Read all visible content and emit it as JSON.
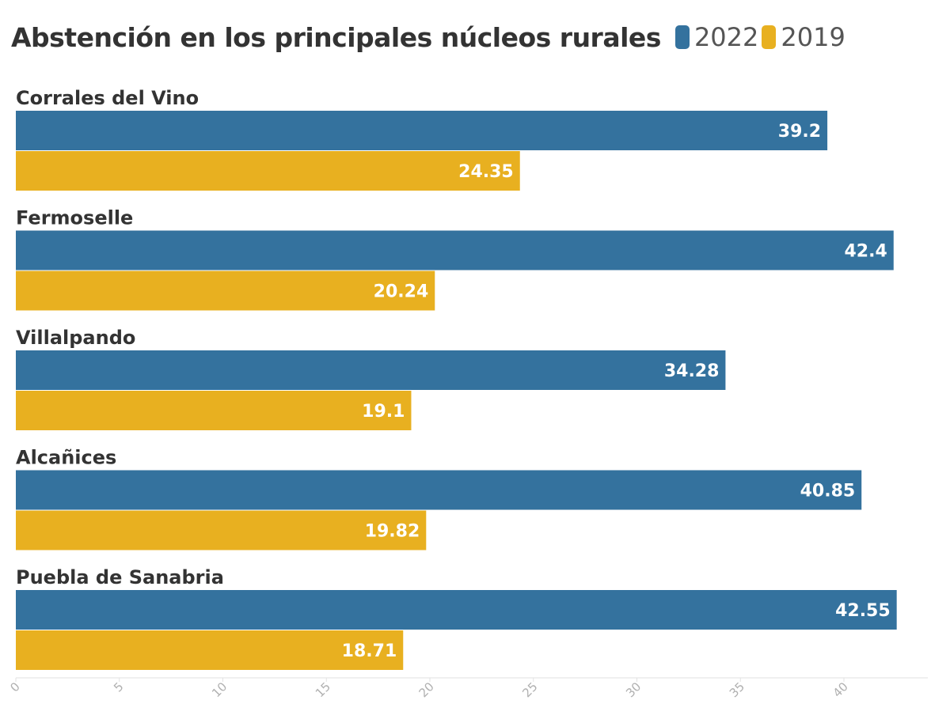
{
  "chart_data": {
    "type": "bar",
    "orientation": "horizontal",
    "title": "Abstención en los principales núcleos rurales",
    "categories": [
      "Corrales del Vino",
      "Fermoselle",
      "Villalpando",
      "Alcañices",
      "Puebla de Sanabria"
    ],
    "series": [
      {
        "name": "2022",
        "color": "#34729e",
        "values": [
          39.2,
          42.4,
          34.28,
          40.85,
          42.55
        ],
        "labels": [
          "39.2",
          "42.4",
          "34.28",
          "40.85",
          "42.55"
        ]
      },
      {
        "name": "2019",
        "color": "#e8b020",
        "values": [
          24.35,
          20.24,
          19.1,
          19.82,
          18.71
        ],
        "labels": [
          "24.35",
          "20.24",
          "19.1",
          "19.82",
          "18.71"
        ]
      }
    ],
    "xlim": [
      0,
      44
    ],
    "xticks": [
      0,
      5,
      10,
      15,
      20,
      25,
      30,
      35,
      40
    ],
    "xtick_labels": [
      "0",
      "5",
      "10",
      "15",
      "20",
      "25",
      "30",
      "35",
      "40"
    ],
    "legend_position": "top, next to title",
    "grid": false
  }
}
